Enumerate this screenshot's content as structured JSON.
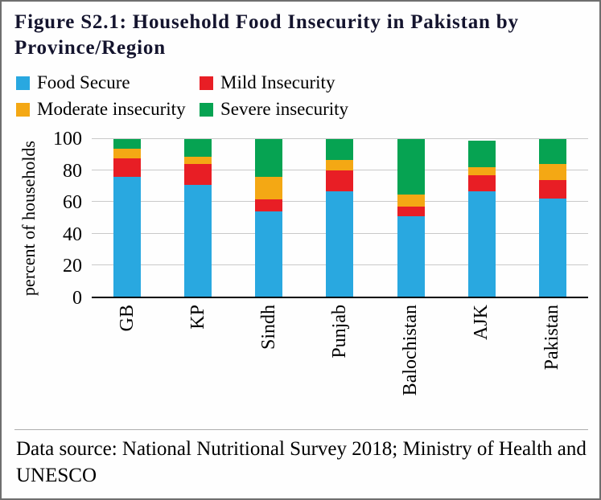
{
  "figure": {
    "title": "Figure S2.1: Household Food Insecurity in Pakistan by Province/Region"
  },
  "chart_data": {
    "type": "bar",
    "stacked": true,
    "title": "Household Food Insecurity in Pakistan by Province/Region",
    "xlabel": "",
    "ylabel": "percent of households",
    "ylim": [
      0,
      100
    ],
    "yticks": [
      0,
      20,
      40,
      60,
      80,
      100
    ],
    "grid": true,
    "legend_position": "top",
    "categories": [
      "GB",
      "KP",
      "Sindh",
      "Punjab",
      "Balochistan",
      "AJK",
      "Pakistan"
    ],
    "series": [
      {
        "name": "Food Secure",
        "color": "#29a8e0",
        "values": [
          76,
          71,
          54,
          67,
          51,
          67,
          62
        ]
      },
      {
        "name": "Mild Insecurity",
        "color": "#e81e25",
        "values": [
          12,
          13,
          8,
          13,
          6,
          10,
          12
        ]
      },
      {
        "name": "Moderate insecurity",
        "color": "#f4a814",
        "values": [
          6,
          5,
          14,
          7,
          8,
          5,
          10
        ]
      },
      {
        "name": "Severe insecurity",
        "color": "#06a352",
        "values": [
          6,
          11,
          24,
          13,
          35,
          17,
          16
        ]
      }
    ]
  },
  "footer": {
    "source": "Data source: National Nutritional Survey 2018; Ministry of Health and UNESCO"
  }
}
